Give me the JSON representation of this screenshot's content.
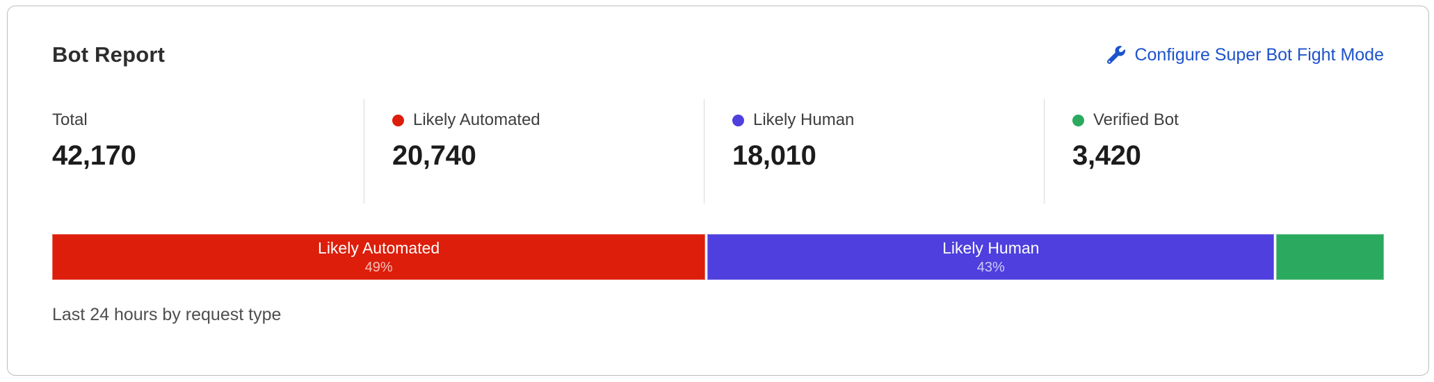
{
  "card": {
    "title": "Bot Report",
    "configure_link": {
      "label": "Configure Super Bot Fight Mode",
      "icon": "wrench-icon"
    },
    "stats": [
      {
        "label": "Total",
        "value": "42,170",
        "dot_color": null
      },
      {
        "label": "Likely Automated",
        "value": "20,740",
        "dot_color": "#dc1e0b"
      },
      {
        "label": "Likely Human",
        "value": "18,010",
        "dot_color": "#4e3fde"
      },
      {
        "label": "Verified Bot",
        "value": "3,420",
        "dot_color": "#2baa5f"
      }
    ],
    "footer": "Last 24 hours by request type"
  },
  "chart_data": {
    "type": "bar",
    "variant": "horizontal-stacked",
    "title": "Bot Report",
    "caption": "Last 24 hours by request type",
    "total": 42170,
    "legend_position": "top",
    "grid": false,
    "segments": [
      {
        "name": "Likely Automated",
        "value": 20740,
        "percent_label": "49%",
        "width_pct": 49.2,
        "color": "#dc1e0b",
        "show_label": true
      },
      {
        "name": "Likely Human",
        "value": 18010,
        "percent_label": "43%",
        "width_pct": 42.7,
        "color": "#4e3fde",
        "show_label": true
      },
      {
        "name": "Verified Bot",
        "value": 3420,
        "percent_label": "",
        "width_pct": 8.1,
        "color": "#2baa5f",
        "show_label": false
      }
    ]
  },
  "colors": {
    "link_blue": "#1d53cb",
    "likely_automated_red": "#dc1e0b",
    "likely_human_purple": "#4e3fde",
    "verified_bot_green": "#2baa5f",
    "card_border": "#bdbdbd",
    "divider": "#d9d9d9"
  }
}
